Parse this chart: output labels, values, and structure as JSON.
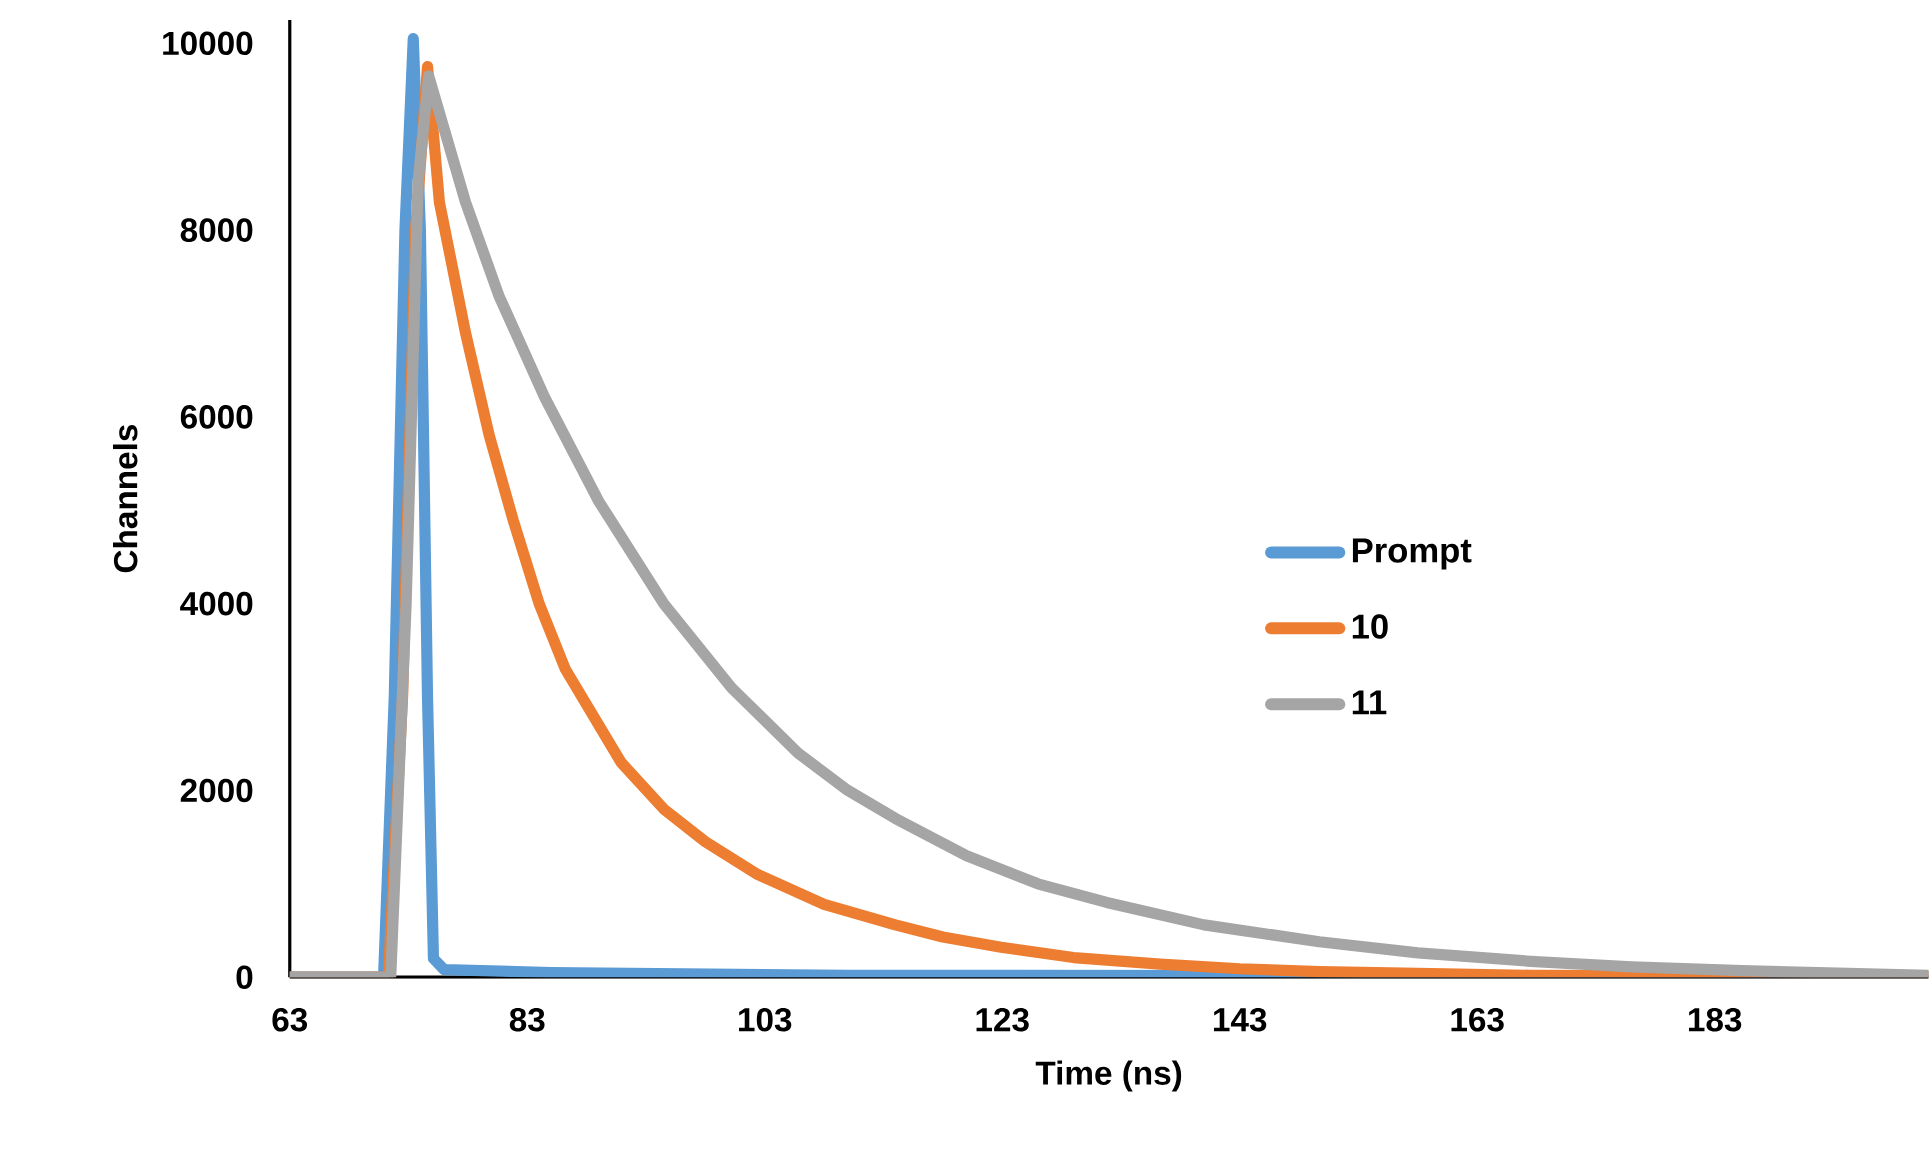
{
  "chart_data": {
    "type": "line",
    "xlabel": "Time (ns)",
    "ylabel": "Channels",
    "xlim": [
      63,
      201
    ],
    "ylim": [
      0,
      10250
    ],
    "xticks": [
      63,
      83,
      103,
      123,
      143,
      163,
      183
    ],
    "yticks": [
      0,
      2000,
      4000,
      6000,
      8000,
      10000
    ],
    "grid": false,
    "legend": "right",
    "marker": "none",
    "line_style": "solid",
    "series": [
      {
        "name": "Prompt",
        "color": "#5b9bd5",
        "x": [
          63,
          70.9,
          71.8,
          72.7,
          73.4,
          74.0,
          74.6,
          75.1,
          76,
          85,
          110,
          201
        ],
        "values": [
          0,
          0,
          3000,
          8000,
          10050,
          8000,
          3000,
          200,
          80,
          50,
          20,
          10
        ]
      },
      {
        "name": "10",
        "color": "#ed7d31",
        "x": [
          63,
          71.3,
          72.5,
          73.6,
          74.6,
          75.6,
          77.8,
          79.8,
          81.8,
          84,
          86.2,
          90.9,
          94.5,
          98,
          102.4,
          108,
          114,
          118,
          122.9,
          129,
          136.3,
          143,
          149.7,
          158,
          167.5,
          201
        ],
        "values": [
          0,
          0,
          3000,
          8000,
          9750,
          8300,
          6900,
          5800,
          4900,
          4000,
          3300,
          2300,
          1800,
          1450,
          1100,
          780,
          560,
          430,
          320,
          210,
          140,
          90,
          60,
          40,
          20,
          10
        ]
      },
      {
        "name": "11",
        "color": "#a5a5a5",
        "x": [
          63,
          71.5,
          72.8,
          73.8,
          74.7,
          77.8,
          80.6,
          84.5,
          89,
          94.5,
          100.2,
          105.8,
          110,
          114,
          120,
          126,
          131.8,
          140,
          149.7,
          158,
          167.5,
          176,
          185.3,
          201
        ],
        "values": [
          0,
          0,
          4000,
          8500,
          9650,
          8300,
          7300,
          6200,
          5100,
          4000,
          3100,
          2400,
          2000,
          1700,
          1300,
          1000,
          800,
          560,
          380,
          260,
          170,
          110,
          70,
          20
        ]
      }
    ]
  }
}
